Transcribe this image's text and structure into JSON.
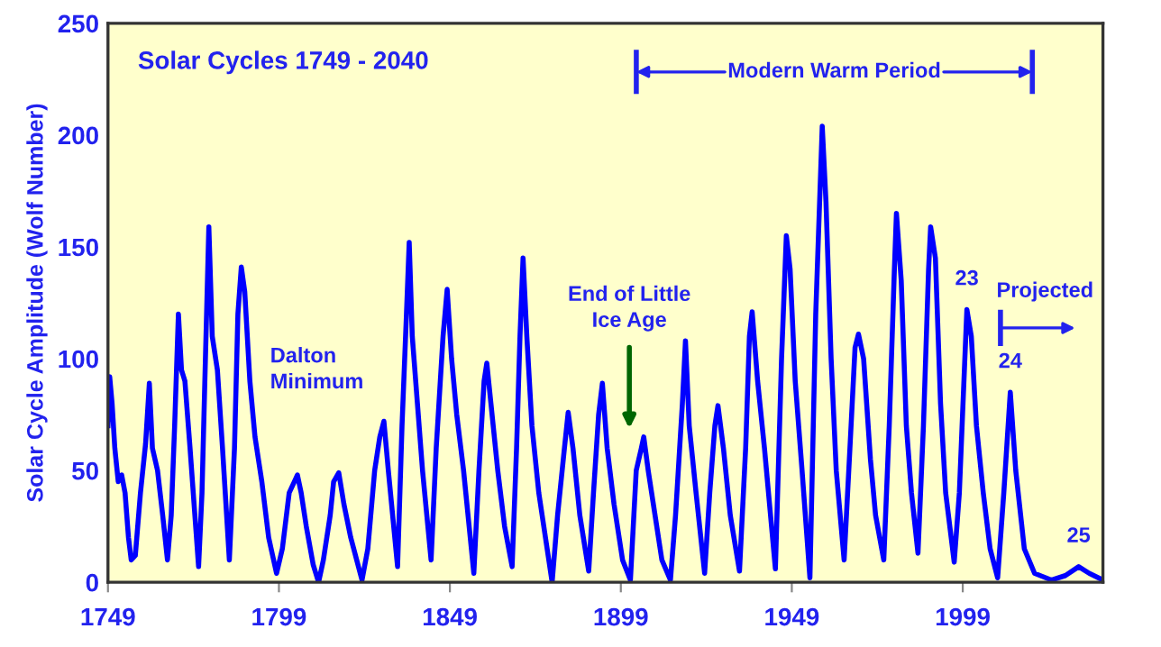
{
  "chart_data": {
    "type": "line",
    "ylabel": "Solar Cycle Amplitude (Wolf Number)",
    "xlim": [
      1749,
      2040
    ],
    "xticks": [
      1749,
      1799,
      1849,
      1899,
      1949,
      1999
    ],
    "ylim": [
      0,
      250
    ],
    "yticks": [
      0,
      50,
      100,
      150,
      200,
      250
    ],
    "grid": false,
    "legend": false,
    "marker": "none",
    "line_style": "solid",
    "series": [
      {
        "color": "#0000ff",
        "x": [
          1749,
          1749.5,
          1750.2,
          1751,
          1752,
          1753,
          1754,
          1755,
          1755.8,
          1757,
          1758.5,
          1760,
          1761.1,
          1762,
          1763.5,
          1765,
          1766.4,
          1767.5,
          1768.5,
          1769.6,
          1770.5,
          1771.5,
          1773,
          1775.5,
          1776.5,
          1777.5,
          1778.5,
          1779.5,
          1781,
          1782.5,
          1784.5,
          1786,
          1787,
          1788,
          1789,
          1790.5,
          1792,
          1794,
          1796,
          1798.3,
          1800,
          1802,
          1803.5,
          1804.4,
          1805.5,
          1807,
          1809,
          1810.6,
          1812,
          1814,
          1815,
          1816.5,
          1818,
          1820,
          1823.3,
          1825,
          1827,
          1828.5,
          1829.7,
          1831,
          1833.7,
          1835,
          1836.3,
          1837.1,
          1838,
          1839.5,
          1841,
          1843.5,
          1845,
          1847,
          1848.2,
          1849.5,
          1851,
          1853,
          1856,
          1857.5,
          1859,
          1859.8,
          1861,
          1863,
          1865,
          1867.2,
          1868.5,
          1869.5,
          1870.4,
          1871.5,
          1873,
          1875,
          1878.9,
          1880.5,
          1882.5,
          1883.6,
          1885,
          1887,
          1889.6,
          1891,
          1892.5,
          1893.6,
          1895,
          1897,
          1899.5,
          1901.8,
          1903.5,
          1905,
          1905.7,
          1907,
          1909,
          1911,
          1913.5,
          1915,
          1917,
          1917.9,
          1919,
          1921,
          1923.5,
          1925,
          1926.5,
          1927.4,
          1929,
          1931,
          1933.7,
          1935.5,
          1936.6,
          1937.4,
          1939,
          1941,
          1944.2,
          1946,
          1947.4,
          1948.5,
          1950,
          1952,
          1954.3,
          1956,
          1957.9,
          1959,
          1960.5,
          1962,
          1964.3,
          1966,
          1967.5,
          1968.5,
          1970,
          1972,
          1973.5,
          1975.9,
          1977.5,
          1979,
          1979.6,
          1981,
          1982.5,
          1984,
          1985.9,
          1987.5,
          1989,
          1989.6,
          1991,
          1992.5,
          1994,
          1996.5,
          1998,
          2000.2,
          2001.5,
          2003,
          2005,
          2007,
          2009.2,
          2011,
          2012.9,
          2014.5,
          2017,
          2020,
          2025,
          2029,
          2032.9,
          2036,
          2040
        ],
        "values": [
          70,
          92,
          80,
          60,
          45,
          48,
          40,
          20,
          10,
          12,
          40,
          62,
          89,
          60,
          50,
          30,
          10,
          30,
          70,
          120,
          95,
          90,
          60,
          7,
          40,
          100,
          159,
          110,
          95,
          60,
          10,
          60,
          120,
          141,
          130,
          90,
          65,
          45,
          20,
          4,
          15,
          40,
          45,
          48,
          40,
          25,
          8,
          0,
          10,
          30,
          45,
          49,
          35,
          20,
          1,
          15,
          50,
          65,
          72,
          50,
          7,
          70,
          120,
          152,
          110,
          80,
          50,
          10,
          60,
          110,
          131,
          100,
          75,
          50,
          4,
          50,
          90,
          98,
          80,
          50,
          25,
          7,
          60,
          110,
          145,
          110,
          70,
          40,
          0,
          30,
          60,
          76,
          60,
          30,
          5,
          40,
          75,
          89,
          60,
          35,
          10,
          1,
          50,
          60,
          65,
          50,
          30,
          10,
          1,
          30,
          80,
          108,
          70,
          40,
          4,
          40,
          70,
          79,
          60,
          30,
          5,
          60,
          110,
          121,
          90,
          60,
          6,
          100,
          155,
          140,
          90,
          50,
          2,
          120,
          204,
          170,
          100,
          50,
          10,
          60,
          105,
          111,
          100,
          55,
          30,
          10,
          70,
          140,
          165,
          135,
          70,
          40,
          13,
          70,
          140,
          159,
          145,
          80,
          40,
          9,
          40,
          122,
          110,
          70,
          40,
          15,
          2,
          40,
          85,
          50,
          15,
          4,
          1,
          3,
          7,
          4,
          1
        ]
      }
    ],
    "annotations": [
      "Solar Cycles 1749 - 2040",
      "Dalton Minimum",
      "End of Little Ice Age",
      {
        "text": "23",
        "x": 2000.2,
        "y": 122
      },
      {
        "text": "24",
        "x": 2012.9,
        "y": 85
      },
      {
        "text": "25",
        "x": 2032.9,
        "y": 7
      },
      "Projected",
      "Modern Warm Period"
    ]
  }
}
